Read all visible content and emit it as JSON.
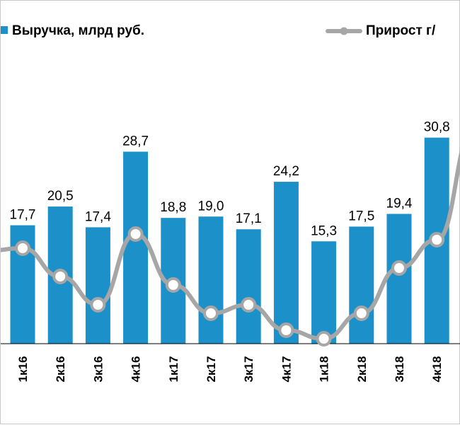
{
  "chart_data": {
    "type": "bar",
    "categories": [
      "1к16",
      "2к16",
      "3к16",
      "4к16",
      "1к17",
      "2к17",
      "3к17",
      "4к17",
      "1к18",
      "2к18",
      "3к18",
      "4к18"
    ],
    "series": [
      {
        "name": "Выручка, млрд руб.",
        "type": "bar",
        "color": "#1c90c9",
        "values": [
          17.7,
          20.5,
          17.4,
          28.7,
          18.8,
          19.0,
          17.1,
          24.2,
          15.3,
          17.5,
          19.4,
          30.8
        ],
        "labels": [
          "17,7",
          "20,5",
          "17,4",
          "28,7",
          "18,8",
          "19,0",
          "17,1",
          "24,2",
          "15,3",
          "17,5",
          "19,4",
          "30,8"
        ]
      },
      {
        "name": "Прирост г/",
        "type": "line",
        "color": "#a6a6a6",
        "marker_fill": "#ffffff",
        "values": [
          9.5,
          7.5,
          5.5,
          10.5,
          6.9,
          4.9,
          5.5,
          3.7,
          3.1,
          4.9,
          8.1,
          10.1
        ],
        "partial_left_value": 9.3,
        "partial_right_value": 18.0
      }
    ],
    "ylim": [
      0,
      36
    ],
    "legend": "top",
    "grid": false
  }
}
